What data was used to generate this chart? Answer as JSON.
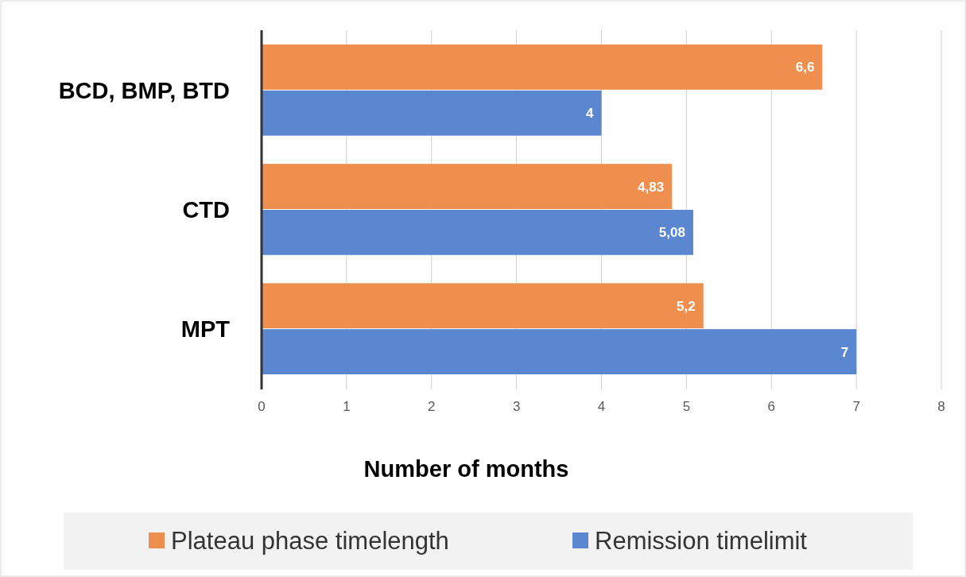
{
  "chart_data": {
    "type": "bar",
    "orientation": "horizontal",
    "xlabel": "Number of months",
    "categories": [
      "BCD, BMP, BTD",
      "CTD",
      "MPT"
    ],
    "series": [
      {
        "name": "Plateau phase timelength",
        "color": "#ef8f4f",
        "values": [
          6.6,
          4.83,
          5.2
        ],
        "value_labels": [
          "6,6",
          "4,83",
          "5,2"
        ]
      },
      {
        "name": "Remission timelimit",
        "color": "#5b87d0",
        "values": [
          4,
          5.08,
          7
        ],
        "value_labels": [
          "4",
          "5,08",
          "7"
        ]
      }
    ],
    "xlim": [
      0,
      8
    ],
    "xticks": [
      0,
      1,
      2,
      3,
      4,
      5,
      6,
      7,
      8
    ],
    "grid": "x",
    "legend": "bottom"
  }
}
